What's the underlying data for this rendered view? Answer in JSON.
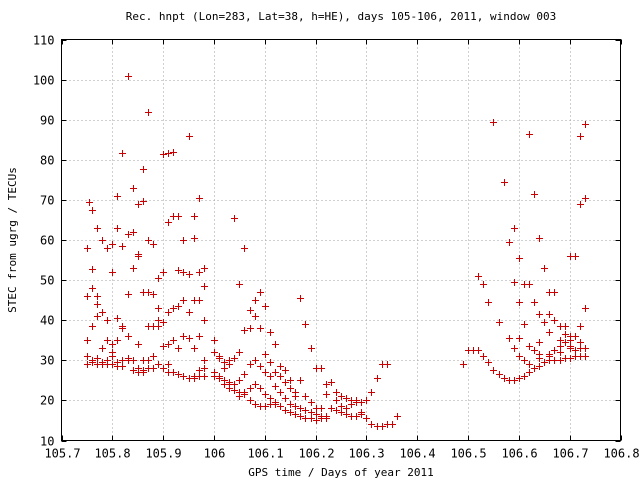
{
  "chart_data": {
    "type": "scatter",
    "title": "Rec. hnpt (Lon=283, Lat=38, h=HE), days 105-106, 2011, window 003",
    "xlabel": "GPS time / Days of year 2011",
    "ylabel": "STEC from ugrg / TECUs",
    "xlim": [
      105.7,
      106.8
    ],
    "ylim": [
      10,
      110
    ],
    "xticks": [
      105.7,
      105.8,
      105.9,
      106,
      106.1,
      106.2,
      106.3,
      106.4,
      106.5,
      106.6,
      106.7,
      106.8
    ],
    "xtick_labels": [
      "105.7",
      "105.8",
      "105.9",
      "106",
      "106.1",
      "106.2",
      "106.3",
      "106.4",
      "106.5",
      "106.6",
      "106.7",
      "106.8"
    ],
    "yticks": [
      10,
      20,
      30,
      40,
      50,
      60,
      70,
      80,
      90,
      100,
      110
    ],
    "ytick_labels": [
      "10",
      "20",
      "30",
      "40",
      "50",
      "60",
      "70",
      "80",
      "90",
      "100",
      "110"
    ],
    "grid": true,
    "marker": "+",
    "color": "#cc0000",
    "series": [
      {
        "x": [
          105.755,
          105.76,
          105.77,
          105.78,
          105.79,
          105.8,
          105.81,
          105.82,
          105.83,
          105.84,
          105.85,
          105.86,
          105.87,
          105.88,
          105.89,
          105.9,
          105.91,
          105.92,
          105.93,
          105.94,
          105.95,
          105.96,
          105.97,
          105.98
        ],
        "y": [
          69.6,
          67.5,
          63.0,
          60.0,
          58.0,
          59.0,
          71.0,
          81.8,
          101.0,
          62.0,
          69.0,
          77.6,
          92.0,
          59.0,
          50.5,
          81.5,
          81.7,
          82.0,
          66.0,
          60.0,
          86.0,
          66.0,
          70.5,
          53.0
        ]
      },
      {
        "x": [
          105.75,
          105.76,
          105.77,
          105.78,
          105.79,
          105.8,
          105.81,
          105.82,
          105.83,
          105.84,
          105.85,
          105.86,
          105.87,
          105.88,
          105.89,
          105.9,
          105.91,
          105.92,
          105.93,
          105.94,
          105.95,
          105.96,
          105.97,
          105.98
        ],
        "y": [
          58.0,
          52.8,
          46.0,
          42.0,
          40.0,
          52.0,
          63.0,
          58.5,
          61.5,
          73.0,
          56.0,
          69.8,
          60.0,
          46.5,
          43.0,
          52.0,
          64.5,
          66.0,
          52.5,
          52.0,
          51.5,
          60.5,
          52.0,
          48.5
        ]
      },
      {
        "x": [
          105.75,
          105.76,
          105.77,
          105.78,
          105.79,
          105.8,
          105.81,
          105.82,
          105.83,
          105.84,
          105.85,
          105.86,
          105.87,
          105.88,
          105.89,
          105.9,
          105.91,
          105.92,
          105.93,
          105.94,
          105.95,
          105.96,
          105.97,
          105.98
        ],
        "y": [
          46.0,
          48.0,
          44.0,
          42.0,
          35.0,
          34.0,
          40.5,
          38.0,
          46.5,
          53.0,
          56.5,
          47.0,
          47.0,
          38.5,
          40.0,
          39.5,
          42.0,
          43.0,
          43.5,
          45.0,
          42.0,
          45.0,
          45.0,
          40.0
        ]
      },
      {
        "x": [
          105.75,
          105.76,
          105.77,
          105.78,
          105.79,
          105.8,
          105.81,
          105.82,
          105.83,
          105.84,
          105.85,
          105.86,
          105.87,
          105.88,
          105.89,
          105.9,
          105.91,
          105.92,
          105.93,
          105.94,
          105.95,
          105.96,
          105.97,
          105.98
        ],
        "y": [
          35.0,
          38.5,
          41.0,
          33.0,
          30.0,
          32.0,
          35.0,
          38.5,
          36.0,
          30.0,
          34.0,
          30.0,
          38.5,
          31.0,
          38.5,
          33.5,
          34.0,
          35.0,
          33.0,
          36.0,
          35.5,
          33.0,
          36.0,
          30.0
        ]
      },
      {
        "x": [
          105.75,
          105.76,
          105.77,
          105.78,
          105.79,
          105.8,
          105.81,
          105.82,
          105.83,
          105.84,
          105.85,
          105.86,
          105.87,
          105.88,
          105.89,
          105.9,
          105.91,
          105.92,
          105.93,
          105.94,
          105.95,
          105.96,
          105.97,
          105.98
        ],
        "y": [
          31.0,
          30.0,
          30.5,
          29.0,
          29.0,
          31.0,
          28.5,
          28.5,
          30.5,
          27.5,
          28.0,
          27.5,
          30.0,
          28.0,
          29.0,
          28.0,
          29.0,
          27.0,
          26.5,
          26.0,
          25.5,
          26.0,
          27.5,
          28.0
        ]
      },
      {
        "x": [
          105.75,
          105.76,
          105.77,
          105.78,
          105.79,
          105.8,
          105.81,
          105.82,
          105.83,
          105.84,
          105.85,
          105.86,
          105.87,
          105.88,
          105.89,
          105.9,
          105.91,
          105.92,
          105.93,
          105.94,
          105.95,
          105.96,
          105.97,
          105.98
        ],
        "y": [
          29.0,
          29.5,
          29.0,
          29.5,
          29.0,
          29.0,
          29.5,
          30.0,
          30.0,
          27.5,
          27.0,
          27.0,
          28.0,
          28.0,
          29.0,
          28.0,
          27.0,
          27.0,
          26.5,
          26.0,
          25.5,
          25.5,
          26.0,
          26.0
        ]
      },
      {
        "x": [
          106.0,
          106.01,
          106.02,
          106.03,
          106.04,
          106.05,
          106.06,
          106.07,
          106.08,
          106.09,
          106.1,
          106.11,
          106.12,
          106.13,
          106.14,
          106.15,
          106.16,
          106.17,
          106.18,
          106.19,
          106.2,
          106.21,
          106.22
        ],
        "y": [
          35.0,
          31.0,
          29.5,
          30.0,
          65.5,
          49.0,
          58.0,
          38.0,
          45.0,
          47.0,
          43.5,
          37.0,
          34.0,
          28.5,
          27.5,
          25.0,
          21.0,
          45.5,
          39.0,
          33.0,
          28.0,
          28.0,
          24.0
        ]
      },
      {
        "x": [
          106.0,
          106.01,
          106.02,
          106.03,
          106.04,
          106.05,
          106.06,
          106.07,
          106.08,
          106.09,
          106.1,
          106.11,
          106.12,
          106.13,
          106.14,
          106.15,
          106.16,
          106.17,
          106.18,
          106.19,
          106.2,
          106.21,
          106.22
        ],
        "y": [
          32.0,
          30.5,
          28.0,
          29.0,
          30.5,
          32.0,
          37.5,
          42.5,
          41.0,
          38.0,
          31.5,
          29.5,
          27.0,
          26.0,
          24.5,
          23.0,
          22.0,
          25.0,
          21.0,
          19.5,
          18.0,
          18.0,
          21.5
        ]
      },
      {
        "x": [
          106.0,
          106.01,
          106.02,
          106.03,
          106.04,
          106.05,
          106.06,
          106.07,
          106.08,
          106.09,
          106.1,
          106.11,
          106.12,
          106.13,
          106.14,
          106.15,
          106.16,
          106.17,
          106.18,
          106.19,
          106.2,
          106.21,
          106.22
        ],
        "y": [
          27.0,
          26.0,
          25.0,
          24.5,
          24.0,
          25.0,
          26.5,
          29.0,
          30.0,
          28.5,
          27.0,
          26.0,
          23.5,
          22.0,
          20.5,
          19.0,
          18.5,
          18.0,
          17.5,
          17.0,
          16.5,
          16.0,
          16.0
        ]
      },
      {
        "x": [
          106.0,
          106.01,
          106.02,
          106.03,
          106.04,
          106.05,
          106.06,
          106.07,
          106.08,
          106.09,
          106.1,
          106.11,
          106.12,
          106.13,
          106.14,
          106.15,
          106.16,
          106.17,
          106.18,
          106.19,
          106.2,
          106.21,
          106.22
        ],
        "y": [
          26.0,
          25.5,
          24.0,
          23.0,
          22.5,
          22.0,
          22.0,
          23.0,
          24.0,
          23.0,
          21.5,
          20.5,
          19.0,
          18.5,
          17.5,
          17.0,
          16.5,
          16.0,
          15.5,
          15.5,
          15.0,
          15.5,
          15.5
        ]
      },
      {
        "x": [
          106.03,
          106.04,
          106.05,
          106.06,
          106.07,
          106.08,
          106.09,
          106.1,
          106.11,
          106.12
        ],
        "y": [
          24.0,
          22.5,
          21.0,
          21.5,
          20.0,
          19.0,
          18.5,
          18.5,
          19.0,
          19.5
        ]
      },
      {
        "x": [
          106.23,
          106.24,
          106.25,
          106.26,
          106.27,
          106.28,
          106.29,
          106.3,
          106.31,
          106.32,
          106.33,
          106.34,
          106.35,
          106.36
        ],
        "y": [
          24.5,
          22.0,
          21.0,
          20.5,
          20.0,
          19.5,
          17.0,
          15.5,
          14.0,
          13.5,
          13.5,
          14.0,
          14.0,
          16.0
        ]
      },
      {
        "x": [
          106.23,
          106.24,
          106.25,
          106.26,
          106.27,
          106.28,
          106.29,
          106.3,
          106.31,
          106.32,
          106.33,
          106.34
        ],
        "y": [
          18.0,
          17.5,
          17.0,
          16.5,
          16.0,
          16.0,
          16.5,
          20.0,
          22.0,
          25.5,
          29.0,
          29.0
        ]
      },
      {
        "x": [
          106.24,
          106.25,
          106.26,
          106.27,
          106.28,
          106.29
        ],
        "y": [
          20.0,
          18.5,
          18.0,
          19.0,
          20.0,
          19.5
        ]
      },
      {
        "x": [
          106.49,
          106.5,
          106.51,
          106.52,
          106.53,
          106.54,
          106.55,
          106.56,
          106.57,
          106.58,
          106.59,
          106.6,
          106.61,
          106.62,
          106.63,
          106.64,
          106.65,
          106.66,
          106.67,
          106.68,
          106.69,
          106.7,
          106.71,
          106.72,
          106.73
        ],
        "y": [
          29.0,
          32.5,
          32.5,
          32.5,
          31.0,
          29.5,
          27.5,
          26.5,
          25.5,
          25.0,
          25.0,
          25.5,
          26.0,
          27.0,
          28.0,
          28.5,
          29.5,
          30.0,
          30.0,
          30.0,
          30.5,
          30.5,
          31.0,
          31.0,
          31.0
        ]
      },
      {
        "x": [
          106.52,
          106.53,
          106.54,
          106.55,
          106.56,
          106.57,
          106.58,
          106.59,
          106.6,
          106.61,
          106.62,
          106.63,
          106.64,
          106.65,
          106.66,
          106.67,
          106.68,
          106.69,
          106.7,
          106.71,
          106.72,
          106.73
        ],
        "y": [
          51.0,
          49.0,
          44.5,
          89.5,
          39.5,
          74.5,
          35.5,
          33.0,
          31.0,
          30.0,
          29.0,
          32.5,
          31.5,
          29.5,
          31.5,
          32.5,
          33.5,
          34.5,
          35.0,
          32.5,
          33.0,
          33.0
        ]
      },
      {
        "x": [
          106.58,
          106.59,
          106.6,
          106.61,
          106.62,
          106.63,
          106.64,
          106.65,
          106.66,
          106.67,
          106.68,
          106.69,
          106.7,
          106.71,
          106.72,
          106.73
        ],
        "y": [
          59.5,
          63.0,
          55.5,
          49.0,
          86.5,
          71.5,
          60.5,
          53.0,
          41.5,
          40.0,
          38.5,
          36.5,
          36.0,
          36.0,
          34.5,
          33.0
        ]
      },
      {
        "x": [
          106.59,
          106.6,
          106.61,
          106.62,
          106.63,
          106.64,
          106.65,
          106.66,
          106.67,
          106.68,
          106.69,
          106.7,
          106.71,
          106.72,
          106.73
        ],
        "y": [
          49.5,
          44.5,
          39.0,
          49.0,
          44.5,
          41.5,
          39.5,
          47.0,
          47.0,
          35.0,
          38.5,
          56.0,
          56.0,
          69.0,
          89.0
        ]
      },
      {
        "x": [
          106.6,
          106.62,
          106.64,
          106.66,
          106.68,
          106.7,
          106.72,
          106.73
        ],
        "y": [
          35.5,
          33.5,
          34.5,
          37.0,
          33.5,
          33.5,
          86.0,
          70.5
        ]
      },
      {
        "x": [
          106.64,
          106.66,
          106.68,
          106.7,
          106.72,
          106.73
        ],
        "y": [
          30.5,
          31.0,
          32.0,
          33.0,
          38.5,
          43.0
        ]
      }
    ]
  }
}
